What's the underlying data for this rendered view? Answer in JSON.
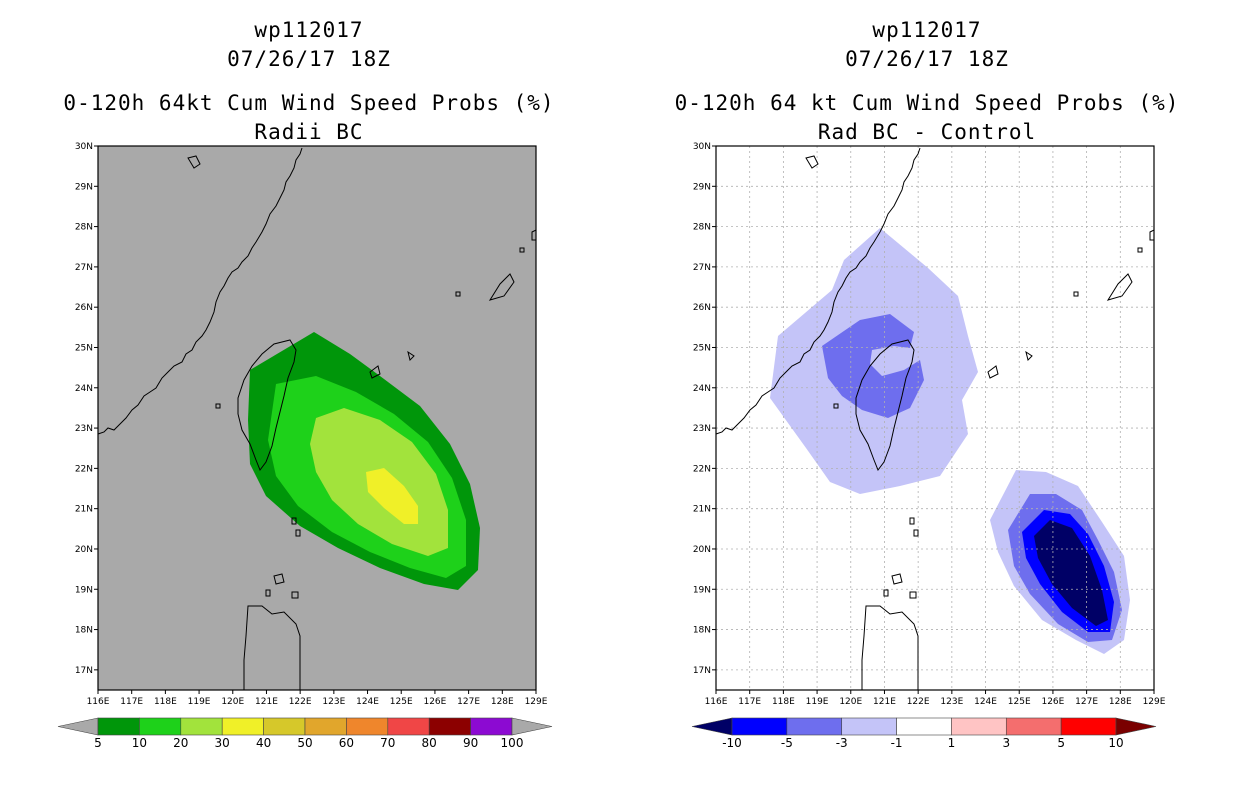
{
  "left": {
    "storm_id": "wp112017",
    "datetime": "07/26/17 18Z",
    "product": "0-120h 64kt Cum Wind Speed Probs (%)",
    "subtitle": "Radii BC",
    "colorbar": {
      "colors": [
        "#00960a",
        "#1ed11a",
        "#a2e33c",
        "#f0f028",
        "#d6c82a",
        "#e1a62c",
        "#ef862c",
        "#f04646",
        "#8c0000",
        "#8c0ad2"
      ],
      "labels": [
        "5",
        "10",
        "20",
        "30",
        "40",
        "50",
        "60",
        "70",
        "80",
        "90",
        "100"
      ]
    }
  },
  "right": {
    "storm_id": "wp112017",
    "datetime": "07/26/17 18Z",
    "product": "0-120h 64 kt Cum Wind Speed Probs (%)",
    "subtitle": "Rad BC - Control",
    "colorbar": {
      "colors": [
        "#0000ff",
        "#6e6eee",
        "#c4c4f8",
        "#ffffff",
        "#ffc4c4",
        "#f46e6e",
        "#ff0000"
      ],
      "labels": [
        "-10",
        "-5",
        "-3",
        "-1",
        "1",
        "3",
        "5",
        "10"
      ]
    }
  },
  "axes": {
    "lon_labels": [
      "116E",
      "117E",
      "118E",
      "119E",
      "120E",
      "121E",
      "122E",
      "123E",
      "124E",
      "125E",
      "126E",
      "127E",
      "128E",
      "129E"
    ],
    "lat_labels": [
      "30N",
      "29N",
      "28N",
      "27N",
      "26N",
      "25N",
      "24N",
      "23N",
      "22N",
      "21N",
      "20N",
      "19N",
      "18N",
      "17N"
    ]
  },
  "colors": {
    "land_background": "#a9a9a9",
    "coast": "#000000",
    "grid": "#b0b0b0",
    "left_low": "#00960a",
    "left_mid": "#1ed11a",
    "left_hi": "#a2e33c",
    "left_top": "#f0f028",
    "right_light": "#c4c4f8",
    "right_mid": "#6e6eee",
    "right_blue": "#0000ff",
    "right_dark": "#000066"
  }
}
